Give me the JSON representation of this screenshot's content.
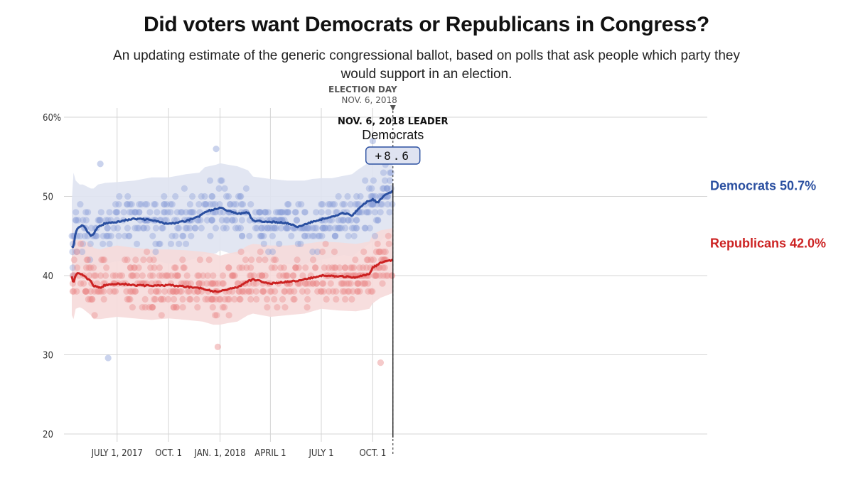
{
  "chart_data": {
    "type": "line",
    "title": "Did voters want Democrats or Republicans in Congress?",
    "subtitle": "An updating estimate of the generic congressional ballot, based on polls that ask people which party they would support in an election.",
    "y_ticks": [
      "60%",
      "50",
      "40",
      "30",
      "20"
    ],
    "y_tick_values": [
      60,
      50,
      40,
      30,
      20
    ],
    "ylim": [
      20,
      60
    ],
    "x_range": [
      "2017-04-11",
      "2018-11-06"
    ],
    "x_ticks": [
      {
        "label": "JULY 1, 2017",
        "date": "2017-07-01"
      },
      {
        "label": "OCT. 1",
        "date": "2017-10-01"
      },
      {
        "label": "JAN. 1, 2018",
        "date": "2018-01-01"
      },
      {
        "label": "APRIL 1",
        "date": "2018-04-01"
      },
      {
        "label": "JULY 1",
        "date": "2018-07-01"
      },
      {
        "label": "OCT. 1",
        "date": "2018-10-01"
      }
    ],
    "colors": {
      "dem": "#2a4fa0",
      "rep": "#cc2222",
      "dem_band": "#dfe3f1",
      "rep_band": "#f6dada",
      "dem_dot": "#8a9ed8",
      "rep_dot": "#e98a8a"
    },
    "series": [
      {
        "name": "Democrats",
        "final_label": "Democrats 50.7%",
        "x": [
          "2017-04-11",
          "2017-04-14",
          "2017-04-18",
          "2017-04-25",
          "2017-05-01",
          "2017-05-15",
          "2017-05-20",
          "2017-05-28",
          "2017-06-10",
          "2017-07-01",
          "2017-08-01",
          "2017-09-01",
          "2017-10-01",
          "2017-11-01",
          "2017-11-25",
          "2017-12-05",
          "2017-12-25",
          "2018-01-01",
          "2018-01-15",
          "2018-02-01",
          "2018-02-20",
          "2018-03-01",
          "2018-04-01",
          "2018-05-01",
          "2018-05-20",
          "2018-06-01",
          "2018-06-15",
          "2018-07-01",
          "2018-07-20",
          "2018-08-10",
          "2018-08-25",
          "2018-09-05",
          "2018-09-20",
          "2018-10-01",
          "2018-10-10",
          "2018-10-20",
          "2018-11-06"
        ],
        "values": [
          43.8,
          43.6,
          45.6,
          46.2,
          46.3,
          45.0,
          45.3,
          46.2,
          46.6,
          46.8,
          47.2,
          47.0,
          46.5,
          46.9,
          47.5,
          48.1,
          48.4,
          48.6,
          48.2,
          47.8,
          48.0,
          46.9,
          46.8,
          46.6,
          46.2,
          46.4,
          46.8,
          47.1,
          47.4,
          47.9,
          47.6,
          48.4,
          49.3,
          49.6,
          49.2,
          50.0,
          50.7
        ],
        "band_upper": [
          49.5,
          53.0,
          52.0,
          51.5,
          51.5,
          51.0,
          51.0,
          51.5,
          51.7,
          51.8,
          52.0,
          52.4,
          52.4,
          52.8,
          53.0,
          53.7,
          54.0,
          54.2,
          54.0,
          53.8,
          53.3,
          52.5,
          52.2,
          52.0,
          52.0,
          52.0,
          52.2,
          52.3,
          52.3,
          52.6,
          52.8,
          53.4,
          54.1,
          55.0,
          54.8,
          55.5,
          56.4
        ],
        "band_lower": [
          38.0,
          39.5,
          40.0,
          41.0,
          41.2,
          40.0,
          40.2,
          41.0,
          41.5,
          41.8,
          42.0,
          42.0,
          41.5,
          41.8,
          42.3,
          42.7,
          42.8,
          43.2,
          42.9,
          42.6,
          43.0,
          42.0,
          41.8,
          41.5,
          41.2,
          41.5,
          41.8,
          42.0,
          42.3,
          42.6,
          42.4,
          43.0,
          43.8,
          44.3,
          44.0,
          44.7,
          45.3
        ]
      },
      {
        "name": "Republicans",
        "final_label": "Republicans 42.0%",
        "x": [
          "2017-04-11",
          "2017-04-14",
          "2017-04-18",
          "2017-04-25",
          "2017-05-01",
          "2017-05-15",
          "2017-05-20",
          "2017-06-01",
          "2017-06-10",
          "2017-07-01",
          "2017-08-01",
          "2017-09-01",
          "2017-10-01",
          "2017-11-01",
          "2017-12-01",
          "2017-12-20",
          "2018-01-01",
          "2018-01-15",
          "2018-02-01",
          "2018-02-20",
          "2018-03-01",
          "2018-04-01",
          "2018-05-01",
          "2018-06-01",
          "2018-07-01",
          "2018-08-01",
          "2018-09-01",
          "2018-09-25",
          "2018-10-01",
          "2018-10-15",
          "2018-11-06"
        ],
        "values": [
          40.0,
          39.0,
          40.2,
          40.3,
          40.0,
          39.3,
          38.7,
          38.5,
          38.8,
          39.0,
          38.8,
          38.7,
          38.8,
          38.6,
          38.4,
          38.0,
          38.0,
          38.3,
          38.5,
          39.3,
          39.5,
          39.0,
          39.2,
          39.5,
          40.0,
          39.9,
          39.8,
          40.2,
          41.0,
          41.6,
          42.0
        ],
        "band_upper": [
          46.5,
          44.0,
          44.5,
          44.5,
          44.5,
          44.0,
          43.5,
          43.3,
          43.5,
          43.8,
          43.5,
          43.3,
          43.3,
          43.2,
          43.0,
          42.8,
          42.5,
          42.8,
          43.0,
          43.8,
          44.0,
          43.8,
          43.8,
          44.0,
          44.3,
          44.2,
          44.0,
          44.3,
          45.2,
          45.7,
          46.0
        ],
        "band_lower": [
          35.0,
          34.5,
          35.8,
          36.0,
          35.8,
          35.0,
          34.5,
          34.5,
          34.6,
          34.8,
          34.6,
          34.4,
          34.6,
          34.4,
          34.2,
          33.8,
          33.8,
          34.0,
          34.2,
          35.0,
          35.2,
          34.8,
          35.0,
          35.2,
          35.8,
          35.6,
          35.5,
          35.8,
          36.5,
          37.2,
          37.8
        ]
      }
    ],
    "poll_dot_count_per_party": 450,
    "outlier_polls": [
      {
        "party": "dem",
        "date": "2017-06-01",
        "value": 54.1
      },
      {
        "party": "dem",
        "date": "2017-06-15",
        "value": 29.6
      },
      {
        "party": "dem",
        "date": "2017-12-25",
        "value": 56.0
      },
      {
        "party": "dem",
        "date": "2018-10-01",
        "value": 57.0
      },
      {
        "party": "rep",
        "date": "2018-10-15",
        "value": 29.0
      },
      {
        "party": "rep",
        "date": "2017-12-28",
        "value": 31.0
      }
    ],
    "election": {
      "label": "ELECTION DAY",
      "date_label": "NOV. 6, 2018",
      "date": "2018-11-06"
    },
    "leader": {
      "heading": "NOV. 6, 2018 LEADER",
      "party": "Democrats",
      "margin": "+8.6"
    }
  }
}
